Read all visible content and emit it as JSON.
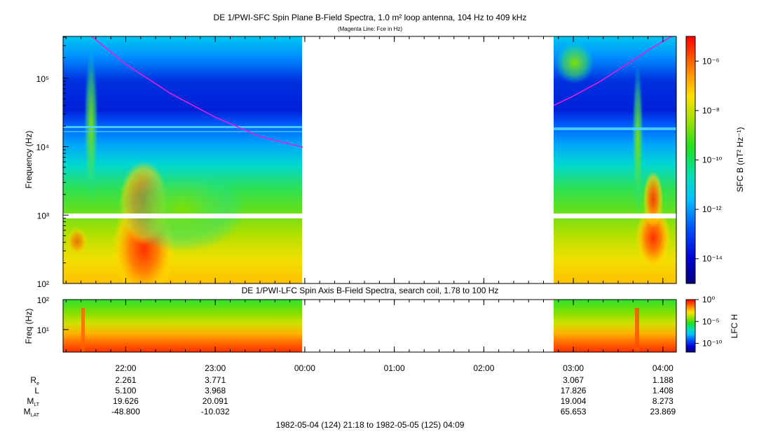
{
  "chart_data": [
    {
      "type": "heatmap",
      "title": "DE 1/PWI-SFC  Spin Plane B-Field Spectra, 1.0 m² loop antenna, 104 Hz to 409 kHz",
      "subtitle": "(Magenta Line: Fce in Hz)",
      "ylabel": "Frequency (Hz)",
      "y_scale": "log",
      "ylim": [
        100,
        409000
      ],
      "y_ticks": [
        {
          "value": 100,
          "label": "10²"
        },
        {
          "value": 1000,
          "label": "10³"
        },
        {
          "value": 10000,
          "label": "10⁴"
        },
        {
          "value": 100000,
          "label": "10⁵"
        }
      ],
      "x_range": [
        "1982-05-04 21:18",
        "1982-05-05 04:09"
      ],
      "data_gap": [
        "1982-05-04 23:59",
        "1982-05-05 02:45"
      ],
      "colorbar": {
        "label": "SFC B (nT² Hz⁻¹)",
        "scale": "log",
        "range": [
          1e-15,
          1e-05
        ],
        "ticks": [
          {
            "value": 1e-06,
            "label": "10⁻⁶"
          },
          {
            "value": 1e-08,
            "label": "10⁻⁸"
          },
          {
            "value": 1e-10,
            "label": "10⁻¹⁰"
          },
          {
            "value": 1e-12,
            "label": "10⁻¹²"
          },
          {
            "value": 1e-14,
            "label": "10⁻¹⁴"
          }
        ]
      },
      "fce_line": {
        "color": "#e020e0",
        "segments": [
          {
            "x": [
              21.62,
              22.0,
              22.5,
              23.0,
              23.5,
              23.98
            ],
            "y": [
              409000,
              160000,
              60000,
              27000,
              14000,
              9800
            ]
          },
          {
            "x": [
              26.78,
              27.0,
              27.3,
              27.6,
              27.9,
              28.1
            ],
            "y": [
              40000,
              55000,
              90000,
              160000,
              290000,
              409000
            ]
          }
        ]
      }
    },
    {
      "type": "heatmap",
      "title": "DE 1/PWI-LFC  Spin Axis B-Field Spectra, search coil, 1.78 to 100 Hz",
      "ylabel": "Freq (Hz)",
      "y_scale": "log",
      "ylim": [
        1.78,
        100
      ],
      "y_ticks": [
        {
          "value": 10,
          "label": "10¹"
        },
        {
          "value": 100,
          "label": "10²"
        }
      ],
      "colorbar": {
        "label": "LFC H",
        "scale": "log",
        "range": [
          1e-12,
          1
        ],
        "ticks": [
          {
            "value": 1,
            "label": "10⁰"
          },
          {
            "value": 1e-05,
            "label": "10⁻⁵"
          },
          {
            "value": 1e-10,
            "label": "10⁻¹⁰"
          }
        ]
      },
      "x_ticks": [
        "22:00",
        "23:00",
        "00:00",
        "01:00",
        "02:00",
        "03:00",
        "04:00"
      ]
    }
  ],
  "ephemeris": {
    "rows": [
      {
        "label": "R",
        "sub": "e",
        "values": [
          "2.261",
          "3.771",
          "",
          "",
          "",
          "3.067",
          "1.188"
        ]
      },
      {
        "label": "L",
        "sub": "",
        "values": [
          "5.100",
          "3.968",
          "",
          "",
          "",
          "17.826",
          "1.408"
        ]
      },
      {
        "label": "M",
        "sub": "LT",
        "values": [
          "19.626",
          "20.091",
          "",
          "",
          "",
          "19.004",
          "8.273"
        ]
      },
      {
        "label": "M",
        "sub": "LAT",
        "values": [
          "-48.800",
          "-10.032",
          "",
          "",
          "",
          "65.653",
          "23.869"
        ]
      }
    ]
  },
  "footer": "1982-05-04 (124) 21:18 to 1982-05-05 (125) 04:09"
}
